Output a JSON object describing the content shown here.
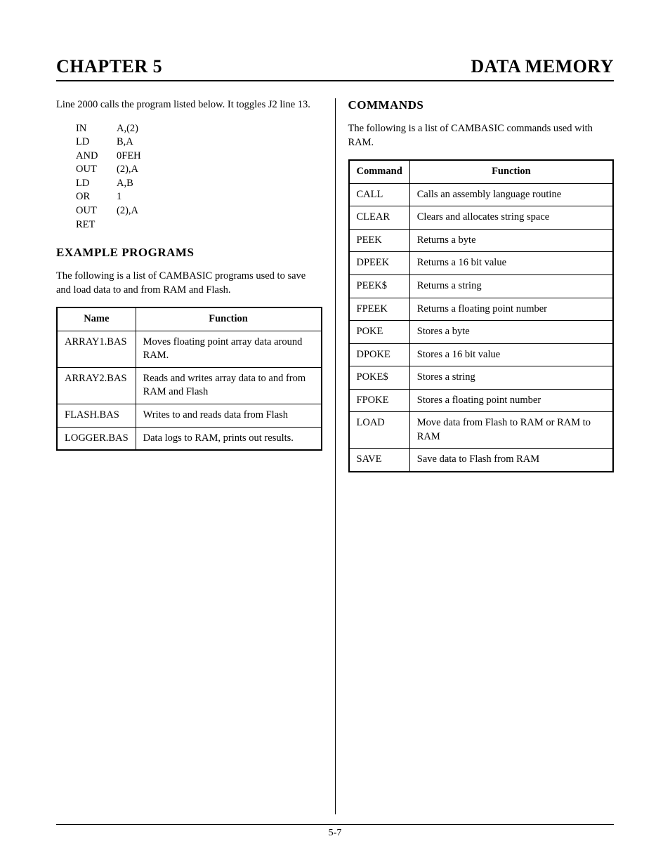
{
  "header": {
    "left": "CHAPTER 5",
    "right": "DATA MEMORY"
  },
  "left": {
    "intro": "Line 2000 calls the program listed below.  It toggles J2 line 13.",
    "code": [
      {
        "op": "IN",
        "arg": "A,(2)"
      },
      {
        "op": "LD",
        "arg": "B,A"
      },
      {
        "op": "AND",
        "arg": "0FEH"
      },
      {
        "op": "OUT",
        "arg": "(2),A"
      },
      {
        "op": "LD",
        "arg": "A,B"
      },
      {
        "op": "OR",
        "arg": "1"
      },
      {
        "op": "OUT",
        "arg": "(2),A"
      },
      {
        "op": "RET",
        "arg": ""
      }
    ],
    "section_title": "EXAMPLE PROGRAMS",
    "section_intro": "The following is a list of CAMBASIC programs used to save and load data to and from RAM and Flash.",
    "table": {
      "columns": [
        "Name",
        "Function"
      ],
      "rows": [
        [
          "ARRAY1.BAS",
          "Moves floating point array data around RAM."
        ],
        [
          "ARRAY2.BAS",
          "Reads and writes array data to and from RAM and Flash"
        ],
        [
          "FLASH.BAS",
          "Writes to and reads data from Flash"
        ],
        [
          "LOGGER.BAS",
          "Data logs to RAM, prints out results."
        ]
      ]
    }
  },
  "right": {
    "section_title": "COMMANDS",
    "section_intro": "The following is a list of CAMBASIC commands used with RAM.",
    "table": {
      "columns": [
        "Command",
        "Function"
      ],
      "rows": [
        [
          "CALL",
          "Calls an assembly language routine"
        ],
        [
          "CLEAR",
          "Clears and allocates string space"
        ],
        [
          "PEEK",
          "Returns a byte"
        ],
        [
          "DPEEK",
          "Returns a 16 bit value"
        ],
        [
          "PEEK$",
          "Returns a string"
        ],
        [
          "FPEEK",
          "Returns a floating point number"
        ],
        [
          "POKE",
          "Stores a byte"
        ],
        [
          "DPOKE",
          "Stores a 16 bit value"
        ],
        [
          "POKE$",
          "Stores a string"
        ],
        [
          "FPOKE",
          "Stores a floating point number"
        ],
        [
          "LOAD",
          "Move data from Flash to RAM or RAM to RAM"
        ],
        [
          "SAVE",
          "Save data to Flash from RAM"
        ]
      ]
    }
  },
  "footer": {
    "page_number": "5-7"
  }
}
